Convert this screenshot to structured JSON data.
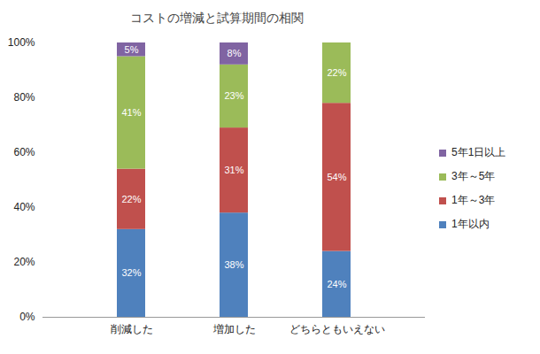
{
  "chart_data": {
    "type": "bar",
    "title": "コストの増減と試算期間の相関",
    "categories": [
      "削減した",
      "増加した",
      "どちらともいえない"
    ],
    "stacked": true,
    "data_labels": true,
    "legend": "right",
    "ylim": [
      0,
      100
    ],
    "yticks": [
      {
        "value": 0,
        "label": "0%"
      },
      {
        "value": 20,
        "label": "20%"
      },
      {
        "value": 40,
        "label": "40%"
      },
      {
        "value": 60,
        "label": "60%"
      },
      {
        "value": 80,
        "label": "80%"
      },
      {
        "value": 100,
        "label": "100%"
      }
    ],
    "series": [
      {
        "name": "1年以内",
        "color": "#4f81bd",
        "values": [
          32,
          38,
          24
        ],
        "value_labels": [
          "32%",
          "38%",
          "24%"
        ]
      },
      {
        "name": "1年～3年",
        "color": "#c0504d",
        "values": [
          22,
          31,
          54
        ],
        "value_labels": [
          "22%",
          "31%",
          "54%"
        ]
      },
      {
        "name": "3年～5年",
        "color": "#9bbb59",
        "values": [
          41,
          23,
          22
        ],
        "value_labels": [
          "41%",
          "23%",
          "22%"
        ]
      },
      {
        "name": "5年1日以上",
        "color": "#8064a2",
        "values": [
          5,
          8,
          null
        ],
        "value_labels": [
          "5%",
          "8%",
          null
        ]
      }
    ]
  }
}
